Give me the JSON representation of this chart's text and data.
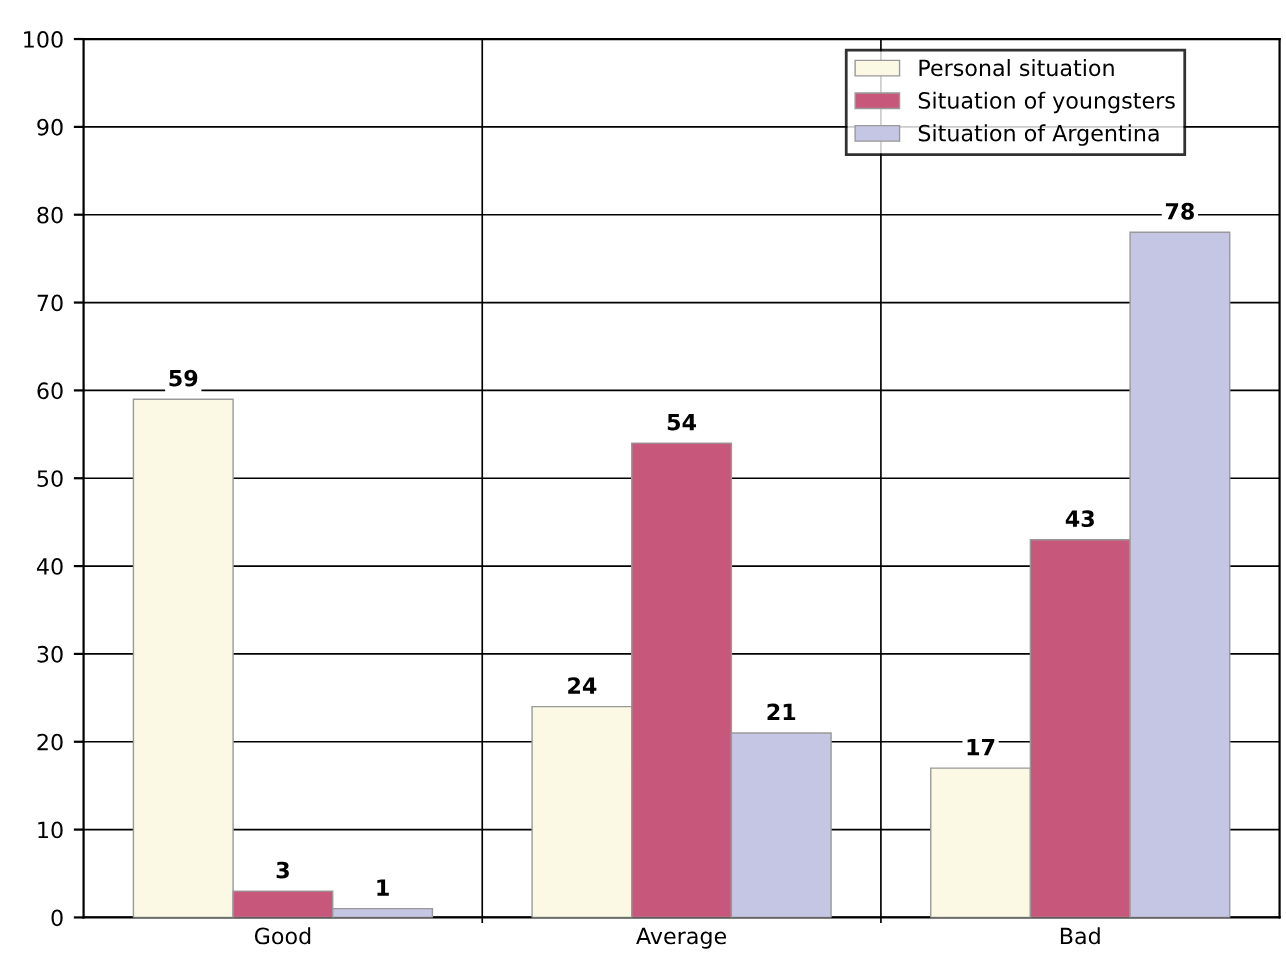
{
  "chart_data": {
    "type": "bar",
    "categories": [
      "Good",
      "Average",
      "Bad"
    ],
    "series": [
      {
        "name": "Personal situation",
        "color": "#fbf8e4",
        "values": [
          59,
          24,
          17
        ]
      },
      {
        "name": "Situation of youngsters",
        "color": "#c8587b",
        "values": [
          3,
          54,
          43
        ]
      },
      {
        "name": "Situation of Argentina",
        "color": "#c5c6e3",
        "values": [
          1,
          21,
          78
        ]
      }
    ],
    "ylim": [
      0,
      100
    ],
    "yticks": [
      0,
      10,
      20,
      30,
      40,
      50,
      60,
      70,
      80,
      90,
      100
    ],
    "grid": true,
    "legend": "top right",
    "data_labels": true
  }
}
